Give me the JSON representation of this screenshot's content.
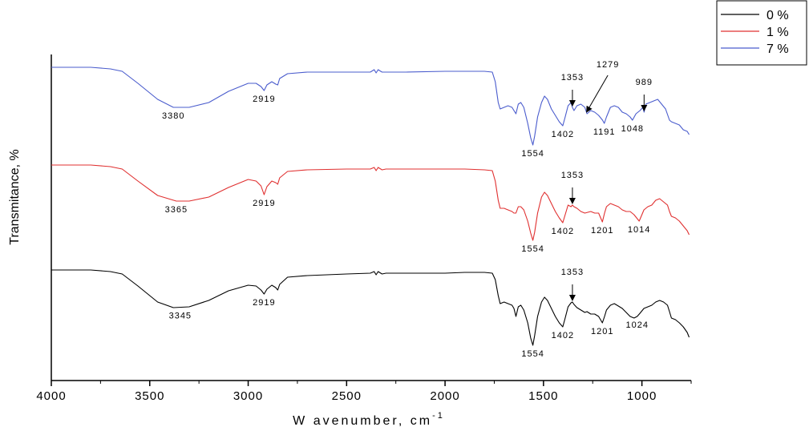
{
  "chart_data": {
    "type": "line",
    "xlabel": "W avenumber, cm",
    "xlabel_sup": "-1",
    "ylabel": "Transmitance, %",
    "xlim": [
      4000,
      750
    ],
    "x_reversed": true,
    "x_ticks": [
      {
        "value": 4000,
        "label": "4000"
      },
      {
        "value": 3500,
        "label": "3500"
      },
      {
        "value": 3000,
        "label": "3000"
      },
      {
        "value": 2500,
        "label": "2500"
      },
      {
        "value": 2000,
        "label": "2000"
      },
      {
        "value": 1500,
        "label": "1500"
      },
      {
        "value": 1000,
        "label": "1000"
      }
    ],
    "legend_position": "top-right",
    "series": [
      {
        "name": "0 %",
        "color": "#000000",
        "baseline": 337,
        "points": [
          [
            4000,
            0
          ],
          [
            3800,
            0
          ],
          [
            3700,
            2
          ],
          [
            3640,
            5
          ],
          [
            3560,
            20
          ],
          [
            3460,
            40
          ],
          [
            3380,
            47
          ],
          [
            3300,
            46
          ],
          [
            3200,
            38
          ],
          [
            3100,
            26
          ],
          [
            3000,
            19
          ],
          [
            2960,
            20
          ],
          [
            2935,
            25
          ],
          [
            2919,
            30
          ],
          [
            2905,
            24
          ],
          [
            2880,
            19
          ],
          [
            2860,
            22
          ],
          [
            2850,
            25
          ],
          [
            2840,
            18
          ],
          [
            2800,
            9
          ],
          [
            2700,
            7
          ],
          [
            2500,
            5
          ],
          [
            2380,
            4
          ],
          [
            2360,
            2
          ],
          [
            2350,
            6
          ],
          [
            2340,
            2
          ],
          [
            2320,
            5
          ],
          [
            2300,
            4
          ],
          [
            2200,
            4
          ],
          [
            2000,
            4
          ],
          [
            1900,
            3
          ],
          [
            1800,
            3
          ],
          [
            1760,
            4
          ],
          [
            1745,
            12
          ],
          [
            1730,
            32
          ],
          [
            1720,
            42
          ],
          [
            1700,
            40
          ],
          [
            1680,
            42
          ],
          [
            1660,
            44
          ],
          [
            1650,
            48
          ],
          [
            1640,
            58
          ],
          [
            1628,
            46
          ],
          [
            1615,
            44
          ],
          [
            1600,
            50
          ],
          [
            1580,
            66
          ],
          [
            1565,
            85
          ],
          [
            1554,
            94
          ],
          [
            1545,
            82
          ],
          [
            1530,
            58
          ],
          [
            1510,
            40
          ],
          [
            1495,
            34
          ],
          [
            1480,
            38
          ],
          [
            1460,
            48
          ],
          [
            1440,
            58
          ],
          [
            1420,
            66
          ],
          [
            1402,
            71
          ],
          [
            1390,
            60
          ],
          [
            1375,
            46
          ],
          [
            1360,
            41
          ],
          [
            1353,
            40
          ],
          [
            1345,
            43
          ],
          [
            1330,
            47
          ],
          [
            1310,
            50
          ],
          [
            1290,
            53
          ],
          [
            1279,
            52
          ],
          [
            1260,
            55
          ],
          [
            1240,
            55
          ],
          [
            1220,
            58
          ],
          [
            1201,
            66
          ],
          [
            1190,
            58
          ],
          [
            1180,
            50
          ],
          [
            1160,
            44
          ],
          [
            1140,
            42
          ],
          [
            1120,
            45
          ],
          [
            1100,
            48
          ],
          [
            1080,
            53
          ],
          [
            1060,
            58
          ],
          [
            1040,
            60
          ],
          [
            1024,
            58
          ],
          [
            1010,
            54
          ],
          [
            990,
            48
          ],
          [
            970,
            46
          ],
          [
            950,
            44
          ],
          [
            930,
            40
          ],
          [
            910,
            38
          ],
          [
            890,
            40
          ],
          [
            870,
            44
          ],
          [
            860,
            52
          ],
          [
            850,
            60
          ],
          [
            830,
            62
          ],
          [
            810,
            66
          ],
          [
            790,
            71
          ],
          [
            770,
            78
          ],
          [
            760,
            84
          ]
        ]
      },
      {
        "name": "1 %",
        "color": "#e03030",
        "baseline": 206,
        "points": [
          [
            4000,
            0
          ],
          [
            3800,
            0
          ],
          [
            3700,
            2
          ],
          [
            3640,
            5
          ],
          [
            3560,
            20
          ],
          [
            3460,
            38
          ],
          [
            3365,
            45
          ],
          [
            3300,
            45
          ],
          [
            3200,
            40
          ],
          [
            3100,
            28
          ],
          [
            3000,
            18
          ],
          [
            2960,
            20
          ],
          [
            2935,
            26
          ],
          [
            2919,
            37
          ],
          [
            2905,
            27
          ],
          [
            2880,
            20
          ],
          [
            2860,
            22
          ],
          [
            2850,
            24
          ],
          [
            2840,
            16
          ],
          [
            2800,
            8
          ],
          [
            2700,
            6
          ],
          [
            2500,
            5
          ],
          [
            2380,
            5
          ],
          [
            2360,
            3
          ],
          [
            2350,
            7
          ],
          [
            2340,
            3
          ],
          [
            2320,
            6
          ],
          [
            2300,
            5
          ],
          [
            2200,
            5
          ],
          [
            2000,
            5
          ],
          [
            1900,
            5
          ],
          [
            1800,
            6
          ],
          [
            1760,
            7
          ],
          [
            1745,
            20
          ],
          [
            1730,
            44
          ],
          [
            1720,
            54
          ],
          [
            1700,
            54
          ],
          [
            1680,
            56
          ],
          [
            1660,
            58
          ],
          [
            1650,
            60
          ],
          [
            1640,
            60
          ],
          [
            1628,
            52
          ],
          [
            1615,
            52
          ],
          [
            1600,
            56
          ],
          [
            1580,
            70
          ],
          [
            1565,
            85
          ],
          [
            1554,
            94
          ],
          [
            1545,
            84
          ],
          [
            1530,
            60
          ],
          [
            1510,
            40
          ],
          [
            1495,
            34
          ],
          [
            1480,
            38
          ],
          [
            1460,
            48
          ],
          [
            1440,
            58
          ],
          [
            1420,
            66
          ],
          [
            1402,
            72
          ],
          [
            1390,
            62
          ],
          [
            1375,
            50
          ],
          [
            1360,
            52
          ],
          [
            1353,
            50
          ],
          [
            1345,
            52
          ],
          [
            1330,
            54
          ],
          [
            1310,
            58
          ],
          [
            1290,
            60
          ],
          [
            1260,
            58
          ],
          [
            1240,
            60
          ],
          [
            1220,
            60
          ],
          [
            1201,
            71
          ],
          [
            1190,
            60
          ],
          [
            1180,
            52
          ],
          [
            1160,
            48
          ],
          [
            1140,
            50
          ],
          [
            1120,
            52
          ],
          [
            1100,
            56
          ],
          [
            1080,
            58
          ],
          [
            1060,
            58
          ],
          [
            1040,
            62
          ],
          [
            1014,
            70
          ],
          [
            1000,
            62
          ],
          [
            990,
            56
          ],
          [
            970,
            52
          ],
          [
            950,
            50
          ],
          [
            930,
            44
          ],
          [
            910,
            42
          ],
          [
            890,
            46
          ],
          [
            870,
            50
          ],
          [
            860,
            58
          ],
          [
            850,
            64
          ],
          [
            830,
            66
          ],
          [
            810,
            70
          ],
          [
            790,
            76
          ],
          [
            770,
            82
          ],
          [
            760,
            87
          ]
        ]
      },
      {
        "name": "7 %",
        "color": "#4a5ccd",
        "baseline": 84,
        "points": [
          [
            4000,
            0
          ],
          [
            3800,
            0
          ],
          [
            3700,
            2
          ],
          [
            3640,
            5
          ],
          [
            3560,
            20
          ],
          [
            3460,
            40
          ],
          [
            3380,
            50
          ],
          [
            3300,
            50
          ],
          [
            3200,
            44
          ],
          [
            3100,
            30
          ],
          [
            3000,
            20
          ],
          [
            2960,
            20
          ],
          [
            2935,
            24
          ],
          [
            2919,
            29
          ],
          [
            2905,
            22
          ],
          [
            2880,
            18
          ],
          [
            2860,
            21
          ],
          [
            2850,
            22
          ],
          [
            2840,
            14
          ],
          [
            2800,
            8
          ],
          [
            2700,
            6
          ],
          [
            2500,
            6
          ],
          [
            2380,
            6
          ],
          [
            2360,
            3
          ],
          [
            2350,
            7
          ],
          [
            2340,
            3
          ],
          [
            2320,
            6
          ],
          [
            2300,
            6
          ],
          [
            2200,
            6
          ],
          [
            2000,
            5
          ],
          [
            1900,
            5
          ],
          [
            1800,
            5
          ],
          [
            1760,
            6
          ],
          [
            1745,
            18
          ],
          [
            1730,
            44
          ],
          [
            1720,
            52
          ],
          [
            1700,
            50
          ],
          [
            1680,
            48
          ],
          [
            1660,
            50
          ],
          [
            1650,
            54
          ],
          [
            1640,
            58
          ],
          [
            1628,
            46
          ],
          [
            1615,
            44
          ],
          [
            1600,
            50
          ],
          [
            1580,
            70
          ],
          [
            1565,
            88
          ],
          [
            1554,
            97
          ],
          [
            1545,
            86
          ],
          [
            1530,
            62
          ],
          [
            1510,
            44
          ],
          [
            1495,
            36
          ],
          [
            1480,
            40
          ],
          [
            1460,
            52
          ],
          [
            1440,
            60
          ],
          [
            1420,
            68
          ],
          [
            1402,
            73
          ],
          [
            1390,
            62
          ],
          [
            1375,
            48
          ],
          [
            1360,
            44
          ],
          [
            1353,
            50
          ],
          [
            1345,
            54
          ],
          [
            1330,
            48
          ],
          [
            1310,
            46
          ],
          [
            1290,
            50
          ],
          [
            1279,
            58
          ],
          [
            1260,
            54
          ],
          [
            1240,
            56
          ],
          [
            1220,
            60
          ],
          [
            1200,
            66
          ],
          [
            1191,
            70
          ],
          [
            1180,
            62
          ],
          [
            1160,
            50
          ],
          [
            1140,
            48
          ],
          [
            1120,
            50
          ],
          [
            1100,
            56
          ],
          [
            1080,
            58
          ],
          [
            1060,
            62
          ],
          [
            1048,
            66
          ],
          [
            1030,
            58
          ],
          [
            1010,
            54
          ],
          [
            995,
            50
          ],
          [
            989,
            56
          ],
          [
            980,
            46
          ],
          [
            960,
            44
          ],
          [
            940,
            42
          ],
          [
            920,
            40
          ],
          [
            900,
            46
          ],
          [
            880,
            52
          ],
          [
            860,
            66
          ],
          [
            850,
            68
          ],
          [
            830,
            70
          ],
          [
            810,
            72
          ],
          [
            790,
            78
          ],
          [
            770,
            80
          ],
          [
            760,
            84
          ]
        ]
      }
    ],
    "annotations": [
      {
        "text": "3380",
        "x": 3380,
        "series": 2
      },
      {
        "text": "2919",
        "x": 2919,
        "series": 2
      },
      {
        "text": "1554",
        "x": 1554,
        "series": 2
      },
      {
        "text": "1402",
        "x": 1402,
        "series": 2
      },
      {
        "text": "1353",
        "x": 1353,
        "series": 2,
        "arrow": true
      },
      {
        "text": "1279",
        "x": 1279,
        "series": 2,
        "arrow": true
      },
      {
        "text": "1191",
        "x": 1191,
        "series": 2
      },
      {
        "text": "1048",
        "x": 1048,
        "series": 2
      },
      {
        "text": "989",
        "x": 989,
        "series": 2,
        "arrow": true
      },
      {
        "text": "3365",
        "x": 3365,
        "series": 1
      },
      {
        "text": "2919",
        "x": 2919,
        "series": 1
      },
      {
        "text": "1554",
        "x": 1554,
        "series": 1
      },
      {
        "text": "1402",
        "x": 1402,
        "series": 1
      },
      {
        "text": "1353",
        "x": 1353,
        "series": 1,
        "arrow": true
      },
      {
        "text": "1201",
        "x": 1201,
        "series": 1
      },
      {
        "text": "1014",
        "x": 1014,
        "series": 1
      },
      {
        "text": "3345",
        "x": 3345,
        "series": 0
      },
      {
        "text": "2919",
        "x": 2919,
        "series": 0
      },
      {
        "text": "1554",
        "x": 1554,
        "series": 0
      },
      {
        "text": "1402",
        "x": 1402,
        "series": 0
      },
      {
        "text": "1353",
        "x": 1353,
        "series": 0,
        "arrow": true
      },
      {
        "text": "1201",
        "x": 1201,
        "series": 0
      },
      {
        "text": "1024",
        "x": 1024,
        "series": 0
      }
    ]
  }
}
